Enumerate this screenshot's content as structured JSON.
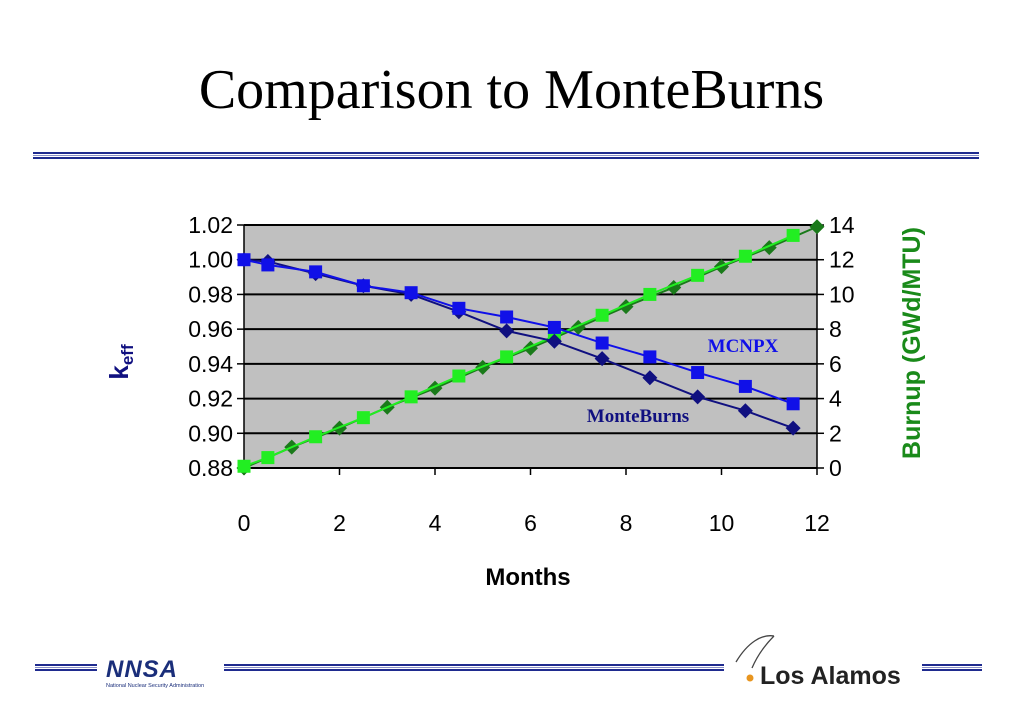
{
  "slide": {
    "title": "Comparison to MonteBurns"
  },
  "logos": {
    "nnsa_text": "NNSA",
    "nnsa_sub": "National Nuclear Security Administration",
    "lanl_text": "Los Alamos"
  },
  "colors": {
    "rule": "#1f2b8f",
    "plot_bg": "#c0c0c0",
    "mcnpx_keff": "#1010e8",
    "monteburns_keff": "#101080",
    "mcnpx_burnup": "#22ee22",
    "monteburns_burnup": "#1a7a1a",
    "burnup_axis_label": "#1a8a1a",
    "keff_axis_label": "#101080"
  },
  "chart_data": {
    "type": "line",
    "xlabel": "Months",
    "ylabel": "k_eff",
    "ylabel_main": "k",
    "ylabel_sub": "eff",
    "y2label": "Burnup (GWd/MTU)",
    "xlim": [
      0,
      12
    ],
    "ylim": [
      0.88,
      1.02
    ],
    "y2lim": [
      0,
      14
    ],
    "xticks": [
      "0",
      "2",
      "4",
      "6",
      "8",
      "10",
      "12"
    ],
    "yticks": [
      "0.88",
      "0.90",
      "0.92",
      "0.94",
      "0.96",
      "0.98",
      "1.00",
      "1.02"
    ],
    "y2ticks": [
      "0",
      "2",
      "4",
      "6",
      "8",
      "10",
      "12",
      "14"
    ],
    "grid": "horizontal",
    "annotations": [
      {
        "text": "MCNPX",
        "series": "mcnpx"
      },
      {
        "text": "MonteBurns",
        "series": "monteburns"
      }
    ],
    "series": [
      {
        "id": "mcnpx_keff",
        "axis": "left",
        "marker": "square",
        "x": [
          0,
          0.5,
          1.5,
          2.5,
          3.5,
          4.5,
          5.5,
          6.5,
          7.5,
          8.5,
          9.5,
          10.5,
          11.5
        ],
        "y": [
          1.0,
          0.997,
          0.993,
          0.985,
          0.981,
          0.972,
          0.967,
          0.961,
          0.952,
          0.944,
          0.935,
          0.927,
          0.917
        ]
      },
      {
        "id": "monteburns_keff",
        "axis": "left",
        "marker": "diamond",
        "x": [
          0,
          0.5,
          1.5,
          2.5,
          3.5,
          4.5,
          5.5,
          6.5,
          7.5,
          8.5,
          9.5,
          10.5,
          11.5
        ],
        "y": [
          1.0,
          0.999,
          0.992,
          0.985,
          0.98,
          0.97,
          0.959,
          0.953,
          0.943,
          0.932,
          0.921,
          0.913,
          0.903
        ]
      },
      {
        "id": "mcnpx_burnup",
        "axis": "right",
        "marker": "square",
        "x": [
          0,
          0.5,
          1.5,
          2.5,
          3.5,
          4.5,
          5.5,
          6.5,
          7.5,
          8.5,
          9.5,
          10.5,
          11.5
        ],
        "y": [
          0.1,
          0.6,
          1.8,
          2.9,
          4.1,
          5.3,
          6.4,
          7.6,
          8.8,
          10.0,
          11.1,
          12.2,
          13.4
        ]
      },
      {
        "id": "monteburns_burnup",
        "axis": "right",
        "marker": "diamond",
        "x": [
          0,
          1,
          2,
          3,
          4,
          5,
          6,
          7,
          8,
          9,
          10,
          11,
          12
        ],
        "y": [
          0,
          1.2,
          2.3,
          3.5,
          4.6,
          5.8,
          6.9,
          8.1,
          9.3,
          10.4,
          11.6,
          12.7,
          13.9
        ]
      }
    ]
  }
}
